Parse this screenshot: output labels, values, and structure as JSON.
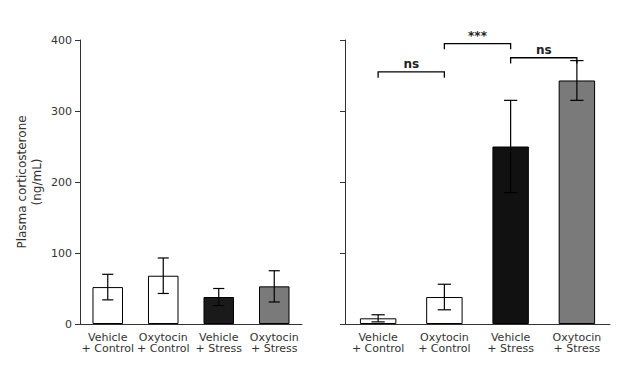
{
  "chart_data": [
    {
      "type": "bar",
      "categories": [
        "Vehicle\n+ Control",
        "Oxytocin\n+ Control",
        "Vehicle\n+ Stress",
        "Oxytocin\n+ Stress"
      ],
      "values": [
        52,
        68,
        38,
        53
      ],
      "errors": [
        18,
        25,
        12,
        22
      ],
      "colors": [
        "white",
        "white",
        "#1a1a1a",
        "#7a7a7a"
      ],
      "ylabel": "Plasma corticosterone\n(ng/mL)",
      "ylim": [
        0,
        400
      ],
      "yticks": [
        0,
        100,
        200,
        300,
        400
      ],
      "grid": false
    },
    {
      "type": "bar",
      "categories": [
        "Vehicle\n+ Control",
        "Oxytocin\n+ Control",
        "Vehicle\n+ Stress",
        "Oxytocin\n+ Stress"
      ],
      "values": [
        8,
        38,
        250,
        343
      ],
      "errors": [
        5,
        18,
        65,
        28
      ],
      "colors": [
        "white",
        "white",
        "#111111",
        "#7a7a7a"
      ],
      "ylim": [
        0,
        400
      ],
      "yticks": [
        0,
        100,
        200,
        300,
        400
      ],
      "grid": false,
      "tick_labels": "x",
      "annotations": [
        {
          "text": "ns",
          "between": [
            "Vehicle\n+ Control",
            "Oxytocin\n+ Control"
          ],
          "y": 355
        },
        {
          "text": "ns",
          "between": [
            "Vehicle\n+ Stress",
            "Oxytocin\n+ Stress"
          ],
          "y": 375
        },
        {
          "text": "***",
          "between": [
            "Oxytocin\n+ Control",
            "Vehicle\n+ Stress"
          ],
          "y": 395
        }
      ]
    }
  ]
}
